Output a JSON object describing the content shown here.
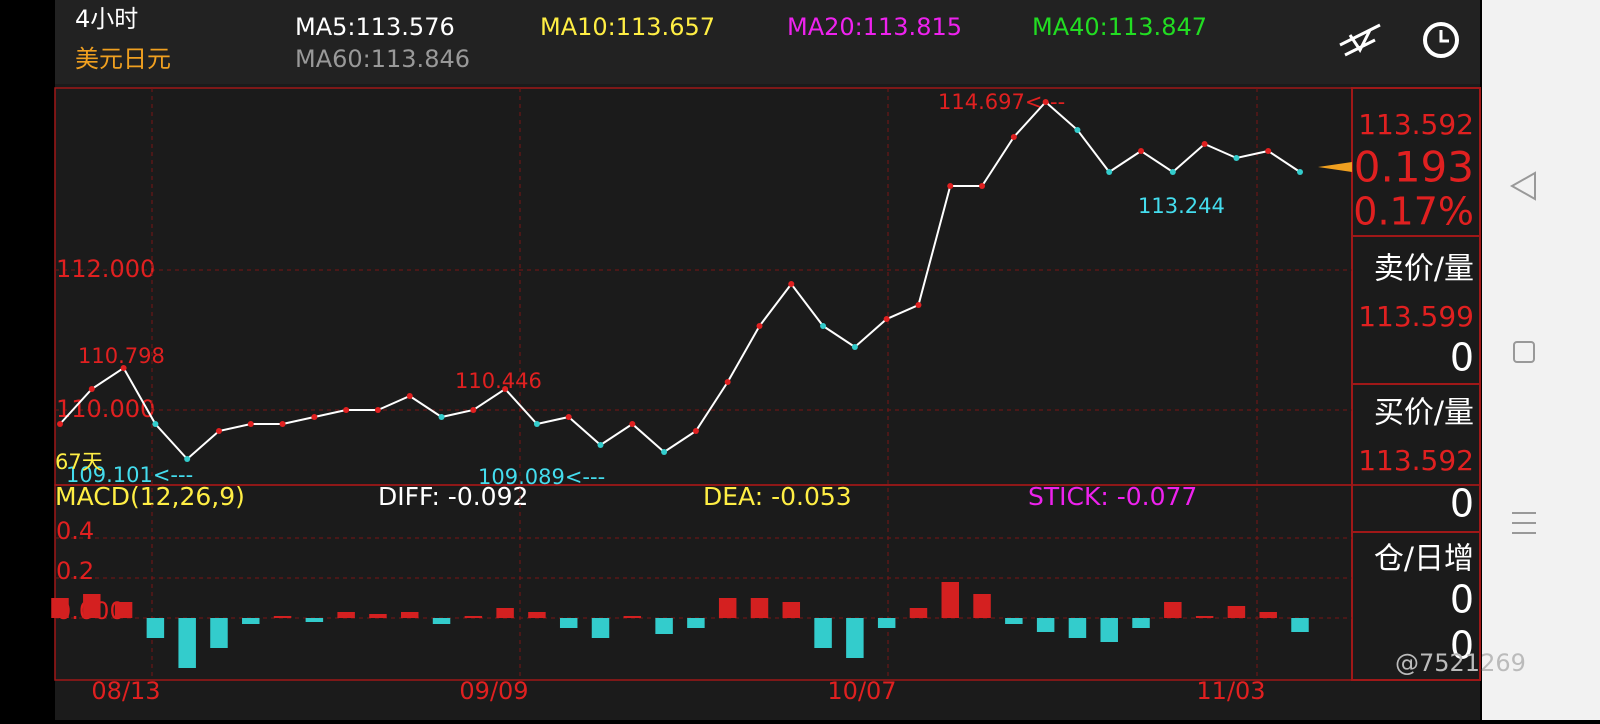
{
  "header": {
    "period": "4小时",
    "symbol": "美元日元",
    "ma": [
      "MA5:113.576",
      "MA10:113.657",
      "MA20:113.815",
      "MA40:113.847",
      "MA60:113.846"
    ]
  },
  "price_chart": {
    "yticks": [
      {
        "value": 112,
        "label": "112.000"
      },
      {
        "value": 110,
        "label": "110.000"
      }
    ],
    "annotations": {
      "high": "114.697<---",
      "low_recent": "113.244",
      "peak1": "110.798",
      "peak2": "110.446",
      "trough1": "109.101<---",
      "trough2": "109.089<---",
      "days": "67天"
    },
    "values": [
      109.8,
      110.3,
      110.6,
      109.8,
      109.3,
      109.7,
      109.8,
      109.8,
      109.9,
      110.0,
      110.0,
      110.2,
      109.9,
      110.0,
      110.3,
      109.8,
      109.9,
      109.5,
      109.8,
      109.4,
      109.7,
      110.4,
      111.2,
      111.8,
      111.2,
      110.9,
      111.3,
      111.5,
      113.2,
      113.2,
      113.9,
      114.4,
      114.0,
      113.4,
      113.7,
      113.4,
      113.8,
      113.6,
      113.7,
      113.4
    ]
  },
  "macd": {
    "title": "MACD(12,26,9)",
    "diff": "DIFF: -0.092",
    "dea": "DEA: -0.053",
    "stick": "STICK: -0.077",
    "yticks": [
      0.4,
      0.2,
      {
        "value": 0,
        "label": "0.000"
      }
    ],
    "values": [
      0.1,
      0.12,
      0.08,
      -0.1,
      -0.25,
      -0.15,
      -0.03,
      0.01,
      -0.02,
      0.03,
      0.02,
      0.03,
      -0.03,
      0.01,
      0.05,
      0.03,
      -0.05,
      -0.1,
      0.01,
      -0.08,
      -0.05,
      0.1,
      0.1,
      0.08,
      -0.15,
      -0.2,
      -0.05,
      0.05,
      0.18,
      0.12,
      -0.03,
      -0.07,
      -0.1,
      -0.12,
      -0.05,
      0.08,
      0.01,
      0.06,
      0.03,
      -0.07
    ]
  },
  "dates": [
    "08/13",
    "09/09",
    "10/07",
    "11/03"
  ],
  "quote": {
    "price": "113.592",
    "change": "0.193",
    "percent": "0.17%",
    "ask_label": "卖价/量",
    "ask": "113.599",
    "ask_vol": "0",
    "bid_label": "买价/量",
    "bid": "113.592",
    "bid_vol": "0",
    "oi_label": "仓/日增",
    "oi": "0",
    "oi_change": "0"
  },
  "watermark": "@7521269"
}
